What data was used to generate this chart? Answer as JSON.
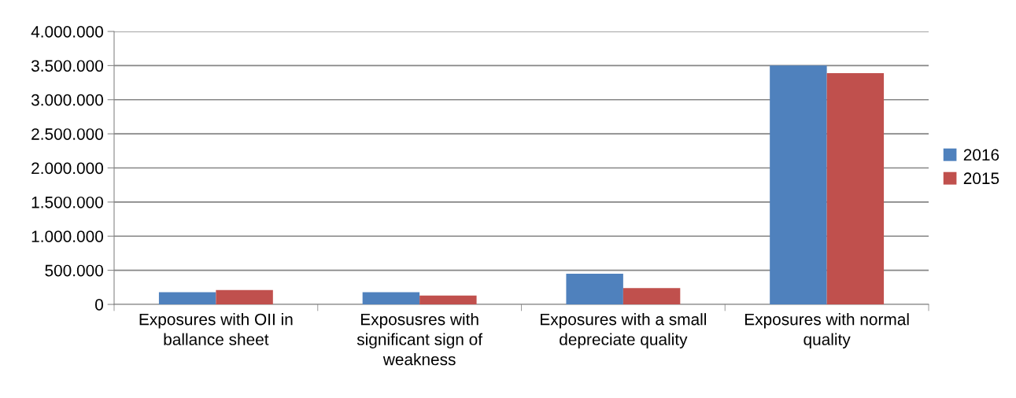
{
  "chart_data": {
    "type": "bar",
    "categories": [
      "Exposures with OII in ballance sheet",
      "Exposusres with significant sign of weakness",
      "Exposures with a small depreciate quality",
      "Exposures with normal quality"
    ],
    "series": [
      {
        "name": "2016",
        "color": "#4f81bd",
        "values": [
          180000,
          180000,
          450000,
          3500000
        ]
      },
      {
        "name": "2015",
        "color": "#c0504d",
        "values": [
          210000,
          130000,
          240000,
          3390000
        ]
      }
    ],
    "ylim": [
      0,
      4000000
    ],
    "yticks": [
      0,
      {
        "value": 500000,
        "label": "500.000"
      },
      {
        "value": 1000000,
        "label": "1.000.000"
      },
      {
        "value": 1500000,
        "label": "1.500.000"
      },
      {
        "value": 2000000,
        "label": "2.000.000"
      },
      {
        "value": 2500000,
        "label": "2.500.000"
      },
      {
        "value": 3000000,
        "label": "3.000.000"
      },
      {
        "value": 3500000,
        "label": "3.500.000"
      },
      {
        "value": 4000000,
        "label": "4.000.000"
      }
    ],
    "grid": "y",
    "legend": "right"
  }
}
